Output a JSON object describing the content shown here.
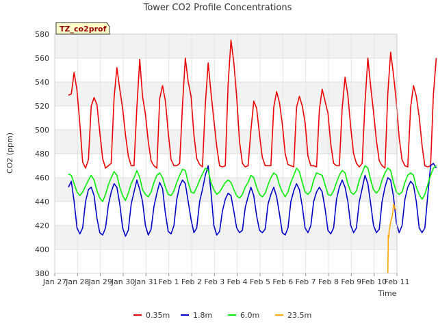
{
  "chart_data": {
    "type": "line",
    "title": "Tower CO2 Profile Concentrations",
    "xlabel": "Time",
    "ylabel": "CO2 (ppm)",
    "ylim": [
      380,
      580
    ],
    "xlim_days": [
      0,
      15
    ],
    "yticks": [
      380,
      400,
      420,
      440,
      460,
      480,
      500,
      520,
      540,
      560,
      580
    ],
    "xtick_labels": [
      "Jan 27",
      "Jan 28",
      "Jan 29",
      "Jan 30",
      "Jan 31",
      "Feb 1",
      "Feb 2",
      "Feb 3",
      "Feb 4",
      "Feb 5",
      "Feb 6",
      "Feb 7",
      "Feb 8",
      "Feb 9",
      "Feb 10",
      "Feb 11"
    ],
    "grid": true,
    "legend_position": "bottom",
    "site_badge": "TZ_co2prof",
    "series": [
      {
        "name": "0.35m",
        "color": "#ee0000",
        "day_offset": 0.6,
        "values": [
          [
            529,
            530,
            548,
            533,
            505,
            473,
            468,
            475
          ],
          [
            520,
            527,
            521,
            498,
            476,
            468,
            470,
            472
          ],
          [
            527,
            552,
            534,
            518,
            496,
            478,
            470,
            470
          ],
          [
            519,
            559,
            528,
            513,
            490,
            474,
            470,
            468
          ],
          [
            526,
            537,
            524,
            498,
            475,
            470,
            470,
            472
          ],
          [
            521,
            560,
            540,
            528,
            496,
            476,
            471,
            469
          ],
          [
            521,
            556,
            531,
            508,
            486,
            470,
            469,
            470
          ],
          [
            538,
            575,
            556,
            528,
            490,
            472,
            469,
            470
          ],
          [
            500,
            524,
            518,
            496,
            477,
            470,
            470,
            470
          ],
          [
            519,
            532,
            523,
            505,
            480,
            471,
            470,
            469
          ],
          [
            519,
            528,
            520,
            506,
            478,
            470,
            470,
            469
          ],
          [
            517,
            534,
            524,
            514,
            488,
            472,
            470,
            470
          ],
          [
            518,
            544,
            529,
            502,
            480,
            472,
            469,
            472
          ],
          [
            522,
            560,
            536,
            515,
            491,
            474,
            470,
            468
          ],
          [
            531,
            565,
            546,
            523,
            493,
            475,
            470,
            469
          ],
          [
            519,
            537,
            528,
            511,
            487,
            470,
            469,
            470
          ],
          [
            530,
            560
          ]
        ]
      },
      {
        "name": "1.8m",
        "color": "#0000cc",
        "day_offset": 0.6,
        "values": [
          [
            452,
            457,
            440,
            418,
            413,
            418,
            440,
            450
          ],
          [
            452,
            445,
            426,
            414,
            412,
            418,
            437,
            448
          ],
          [
            455,
            452,
            438,
            418,
            411,
            416,
            438,
            448
          ],
          [
            458,
            450,
            440,
            420,
            412,
            417,
            436,
            447
          ],
          [
            456,
            451,
            430,
            415,
            413,
            420,
            442,
            453
          ],
          [
            458,
            455,
            440,
            425,
            414,
            418,
            440,
            450
          ],
          [
            462,
            470,
            448,
            420,
            412,
            415,
            432,
            442
          ],
          [
            447,
            445,
            432,
            418,
            414,
            416,
            435,
            444
          ],
          [
            452,
            445,
            428,
            416,
            414,
            417,
            438,
            446
          ],
          [
            452,
            444,
            430,
            414,
            412,
            418,
            440,
            449
          ],
          [
            455,
            450,
            436,
            418,
            414,
            420,
            440,
            448
          ],
          [
            452,
            448,
            434,
            416,
            413,
            418,
            442,
            452
          ],
          [
            458,
            452,
            440,
            420,
            414,
            418,
            440,
            451
          ],
          [
            462,
            455,
            438,
            420,
            414,
            417,
            440,
            452
          ],
          [
            460,
            458,
            444,
            422,
            414,
            420,
            442,
            452
          ],
          [
            457,
            454,
            440,
            418,
            414,
            418,
            445,
            470
          ],
          [
            472,
            468
          ]
        ]
      },
      {
        "name": "6.0m",
        "color": "#00ee00",
        "day_offset": 0.6,
        "values": [
          [
            463,
            462,
            455,
            448,
            445,
            448,
            453,
            458
          ],
          [
            462,
            458,
            449,
            443,
            440,
            446,
            454,
            460
          ],
          [
            465,
            462,
            452,
            445,
            441,
            447,
            455,
            460
          ],
          [
            466,
            460,
            450,
            446,
            444,
            448,
            456,
            462
          ],
          [
            464,
            460,
            452,
            446,
            445,
            449,
            456,
            462
          ],
          [
            467,
            466,
            456,
            448,
            447,
            452,
            458,
            463
          ],
          [
            468,
            466,
            456,
            450,
            446,
            448,
            452,
            456
          ],
          [
            458,
            456,
            450,
            445,
            443,
            446,
            452,
            456
          ],
          [
            462,
            460,
            452,
            446,
            444,
            447,
            454,
            460
          ],
          [
            464,
            462,
            454,
            448,
            444,
            448,
            456,
            462
          ],
          [
            468,
            465,
            456,
            448,
            446,
            449,
            458,
            464
          ],
          [
            463,
            462,
            454,
            446,
            445,
            449,
            456,
            462
          ],
          [
            466,
            464,
            455,
            448,
            446,
            449,
            458,
            464
          ],
          [
            470,
            468,
            458,
            450,
            447,
            450,
            458,
            464
          ],
          [
            468,
            466,
            456,
            448,
            446,
            448,
            456,
            462
          ],
          [
            464,
            462,
            452,
            446,
            442,
            446,
            454,
            462
          ],
          [
            468,
            470
          ]
        ]
      },
      {
        "name": "23.5m",
        "color": "#ffa500",
        "x_days": [
          14.6,
          14.62,
          14.64,
          14.66,
          14.7,
          14.74,
          14.8,
          14.86,
          14.92,
          14.96
        ],
        "y": [
          380,
          412,
          410,
          416,
          420,
          424,
          428,
          438,
          434,
          433
        ]
      }
    ]
  }
}
